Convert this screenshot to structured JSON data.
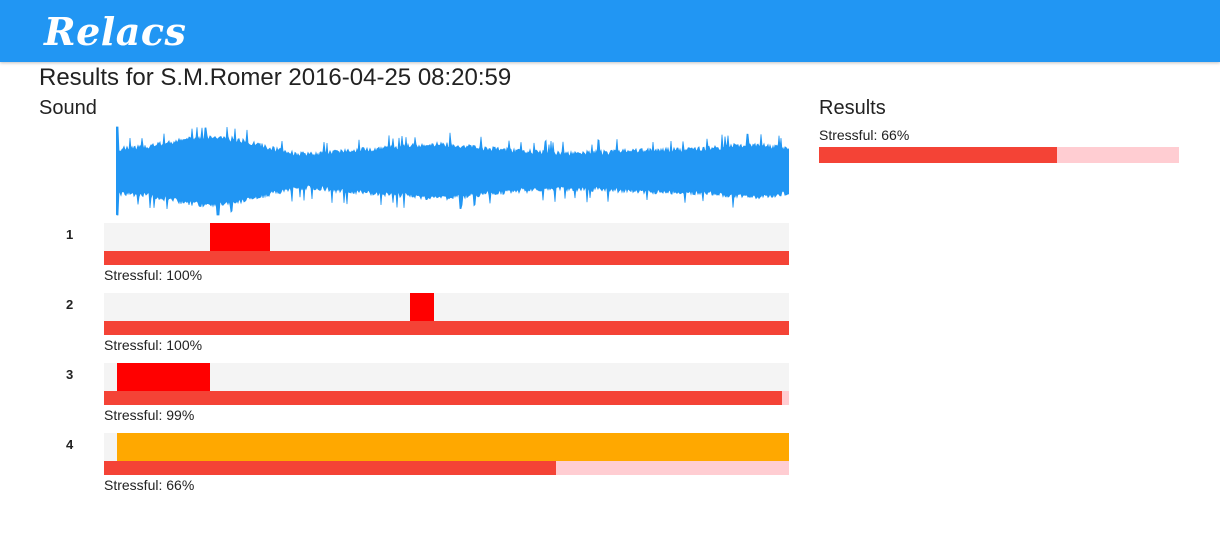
{
  "app": {
    "brand": "Relacs"
  },
  "page": {
    "title": "Results for S.M.Romer 2016-04-25 08:20:59"
  },
  "sound": {
    "section_title": "Sound",
    "waveform_color": "#2196f3"
  },
  "segments": [
    {
      "number": "1",
      "stress_label": "Stressful: 100%",
      "stress_fraction": 1.0,
      "mark": {
        "start": 0.155,
        "end": 0.243,
        "color": "#ff0000"
      }
    },
    {
      "number": "2",
      "stress_label": "Stressful: 100%",
      "stress_fraction": 1.0,
      "mark": {
        "start": 0.447,
        "end": 0.482,
        "color": "#ff0000"
      }
    },
    {
      "number": "3",
      "stress_label": "Stressful: 99%",
      "stress_fraction": 0.99,
      "mark": {
        "start": 0.019,
        "end": 0.155,
        "color": "#ff0000"
      }
    },
    {
      "number": "4",
      "stress_label": "Stressful: 66%",
      "stress_fraction": 0.66,
      "mark": {
        "start": 0.019,
        "end": 1.0,
        "color": "#ffa800"
      }
    }
  ],
  "results": {
    "section_title": "Results",
    "summary_label": "Stressful: 66%",
    "summary_fraction": 0.66
  },
  "colors": {
    "appbar": "#2196f3",
    "stress_fill": "#f44336",
    "stress_track": "#ffcdd2",
    "segment_track": "#f4f4f4"
  }
}
